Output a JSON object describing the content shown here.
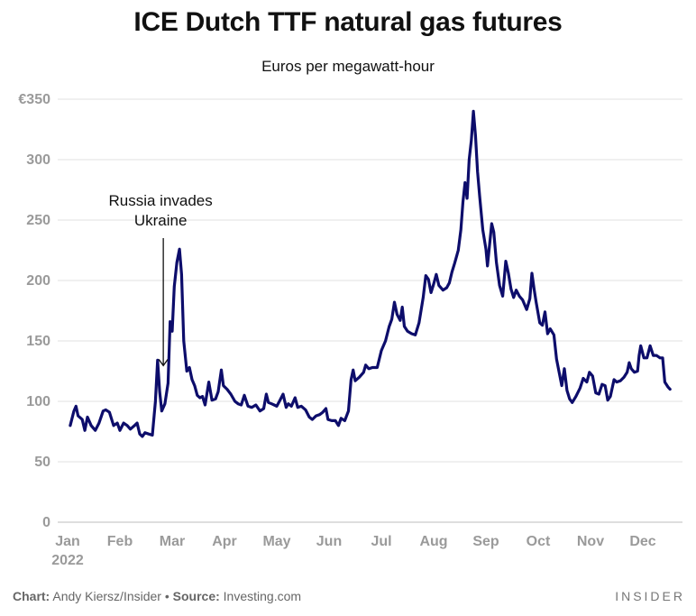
{
  "chart_data": {
    "type": "line",
    "title": "ICE Dutch TTF natural gas futures",
    "subtitle": "Euros per megawatt-hour",
    "xlabel": "",
    "ylabel": "",
    "ylim": [
      0,
      350
    ],
    "y_ticks": [
      {
        "value": 0,
        "label": "0"
      },
      {
        "value": 50,
        "label": "50"
      },
      {
        "value": 100,
        "label": "100"
      },
      {
        "value": 150,
        "label": "150"
      },
      {
        "value": 200,
        "label": "200"
      },
      {
        "value": 250,
        "label": "250"
      },
      {
        "value": 300,
        "label": "300"
      },
      {
        "value": 350,
        "label": "€350"
      }
    ],
    "x_ticks": [
      {
        "month": 1,
        "label": "Jan",
        "sublabel": "2022"
      },
      {
        "month": 2,
        "label": "Feb"
      },
      {
        "month": 3,
        "label": "Mar"
      },
      {
        "month": 4,
        "label": "Apr"
      },
      {
        "month": 5,
        "label": "May"
      },
      {
        "month": 6,
        "label": "Jun"
      },
      {
        "month": 7,
        "label": "Jul"
      },
      {
        "month": 8,
        "label": "Aug"
      },
      {
        "month": 9,
        "label": "Sep"
      },
      {
        "month": 10,
        "label": "Oct"
      },
      {
        "month": 11,
        "label": "Nov"
      },
      {
        "month": 12,
        "label": "Dec"
      }
    ],
    "grid": true,
    "line_color": "#0d0d6b",
    "annotation": {
      "lines": [
        "Russia invades",
        "Ukraine"
      ],
      "x": 2.83,
      "y": 140
    },
    "series": [
      {
        "values": [
          [
            1.05,
            80
          ],
          [
            1.12,
            92
          ],
          [
            1.16,
            96
          ],
          [
            1.2,
            88
          ],
          [
            1.28,
            85
          ],
          [
            1.33,
            76
          ],
          [
            1.38,
            87
          ],
          [
            1.45,
            80
          ],
          [
            1.53,
            76
          ],
          [
            1.6,
            82
          ],
          [
            1.68,
            92
          ],
          [
            1.73,
            93
          ],
          [
            1.8,
            91
          ],
          [
            1.88,
            80
          ],
          [
            1.95,
            82
          ],
          [
            2.0,
            76
          ],
          [
            2.07,
            82
          ],
          [
            2.14,
            80
          ],
          [
            2.2,
            77
          ],
          [
            2.28,
            80
          ],
          [
            2.33,
            82
          ],
          [
            2.38,
            73
          ],
          [
            2.43,
            71
          ],
          [
            2.48,
            74
          ],
          [
            2.55,
            73
          ],
          [
            2.62,
            72
          ],
          [
            2.68,
            100
          ],
          [
            2.72,
            134
          ],
          [
            2.76,
            108
          ],
          [
            2.8,
            92
          ],
          [
            2.86,
            98
          ],
          [
            2.92,
            115
          ],
          [
            2.96,
            166
          ],
          [
            3.0,
            158
          ],
          [
            3.04,
            195
          ],
          [
            3.09,
            215
          ],
          [
            3.14,
            226
          ],
          [
            3.18,
            205
          ],
          [
            3.22,
            150
          ],
          [
            3.28,
            125
          ],
          [
            3.33,
            128
          ],
          [
            3.38,
            118
          ],
          [
            3.43,
            113
          ],
          [
            3.48,
            105
          ],
          [
            3.53,
            103
          ],
          [
            3.58,
            104
          ],
          [
            3.63,
            97
          ],
          [
            3.7,
            116
          ],
          [
            3.76,
            101
          ],
          [
            3.83,
            102
          ],
          [
            3.88,
            108
          ],
          [
            3.94,
            126
          ],
          [
            3.98,
            113
          ],
          [
            4.05,
            110
          ],
          [
            4.12,
            106
          ],
          [
            4.2,
            100
          ],
          [
            4.26,
            98
          ],
          [
            4.32,
            97
          ],
          [
            4.38,
            105
          ],
          [
            4.45,
            96
          ],
          [
            4.52,
            95
          ],
          [
            4.6,
            97
          ],
          [
            4.68,
            92
          ],
          [
            4.75,
            94
          ],
          [
            4.8,
            106
          ],
          [
            4.84,
            99
          ],
          [
            4.9,
            98
          ],
          [
            4.95,
            97
          ],
          [
            5.0,
            96
          ],
          [
            5.05,
            100
          ],
          [
            5.12,
            106
          ],
          [
            5.18,
            95
          ],
          [
            5.22,
            98
          ],
          [
            5.28,
            96
          ],
          [
            5.35,
            103
          ],
          [
            5.4,
            95
          ],
          [
            5.47,
            96
          ],
          [
            5.55,
            93
          ],
          [
            5.62,
            87
          ],
          [
            5.68,
            85
          ],
          [
            5.75,
            88
          ],
          [
            5.82,
            89
          ],
          [
            5.88,
            91
          ],
          [
            5.94,
            94
          ],
          [
            5.98,
            85
          ],
          [
            6.05,
            84
          ],
          [
            6.12,
            84
          ],
          [
            6.18,
            80
          ],
          [
            6.23,
            86
          ],
          [
            6.3,
            84
          ],
          [
            6.37,
            92
          ],
          [
            6.42,
            118
          ],
          [
            6.46,
            126
          ],
          [
            6.5,
            117
          ],
          [
            6.58,
            120
          ],
          [
            6.66,
            124
          ],
          [
            6.7,
            130
          ],
          [
            6.76,
            127
          ],
          [
            6.83,
            128
          ],
          [
            6.92,
            128
          ],
          [
            7.0,
            142
          ],
          [
            7.08,
            150
          ],
          [
            7.15,
            162
          ],
          [
            7.2,
            168
          ],
          [
            7.25,
            182
          ],
          [
            7.3,
            172
          ],
          [
            7.36,
            167
          ],
          [
            7.4,
            178
          ],
          [
            7.44,
            162
          ],
          [
            7.5,
            158
          ],
          [
            7.58,
            156
          ],
          [
            7.65,
            155
          ],
          [
            7.72,
            165
          ],
          [
            7.8,
            186
          ],
          [
            7.85,
            204
          ],
          [
            7.9,
            201
          ],
          [
            7.95,
            190
          ],
          [
            8.0,
            197
          ],
          [
            8.05,
            205
          ],
          [
            8.1,
            196
          ],
          [
            8.18,
            192
          ],
          [
            8.25,
            194
          ],
          [
            8.3,
            198
          ],
          [
            8.35,
            207
          ],
          [
            8.4,
            214
          ],
          [
            8.47,
            225
          ],
          [
            8.52,
            242
          ],
          [
            8.56,
            265
          ],
          [
            8.6,
            281
          ],
          [
            8.64,
            268
          ],
          [
            8.68,
            300
          ],
          [
            8.72,
            316
          ],
          [
            8.76,
            340
          ],
          [
            8.8,
            320
          ],
          [
            8.84,
            290
          ],
          [
            8.88,
            270
          ],
          [
            8.94,
            242
          ],
          [
            9.0,
            226
          ],
          [
            9.03,
            212
          ],
          [
            9.07,
            230
          ],
          [
            9.11,
            247
          ],
          [
            9.15,
            240
          ],
          [
            9.2,
            215
          ],
          [
            9.26,
            196
          ],
          [
            9.32,
            187
          ],
          [
            9.38,
            216
          ],
          [
            9.43,
            206
          ],
          [
            9.48,
            193
          ],
          [
            9.53,
            186
          ],
          [
            9.58,
            192
          ],
          [
            9.64,
            187
          ],
          [
            9.7,
            184
          ],
          [
            9.78,
            176
          ],
          [
            9.84,
            185
          ],
          [
            9.88,
            206
          ],
          [
            9.92,
            193
          ],
          [
            9.96,
            182
          ],
          [
            10.03,
            165
          ],
          [
            10.08,
            163
          ],
          [
            10.13,
            174
          ],
          [
            10.18,
            156
          ],
          [
            10.23,
            160
          ],
          [
            10.3,
            155
          ],
          [
            10.35,
            135
          ],
          [
            10.4,
            124
          ],
          [
            10.45,
            113
          ],
          [
            10.5,
            127
          ],
          [
            10.55,
            109
          ],
          [
            10.6,
            102
          ],
          [
            10.65,
            99
          ],
          [
            10.72,
            104
          ],
          [
            10.8,
            111
          ],
          [
            10.86,
            119
          ],
          [
            10.93,
            116
          ],
          [
            10.98,
            124
          ],
          [
            11.04,
            121
          ],
          [
            11.1,
            107
          ],
          [
            11.16,
            106
          ],
          [
            11.22,
            114
          ],
          [
            11.28,
            113
          ],
          [
            11.33,
            101
          ],
          [
            11.38,
            104
          ],
          [
            11.45,
            118
          ],
          [
            11.5,
            116
          ],
          [
            11.57,
            117
          ],
          [
            11.64,
            120
          ],
          [
            11.7,
            124
          ],
          [
            11.74,
            132
          ],
          [
            11.78,
            127
          ],
          [
            11.84,
            124
          ],
          [
            11.9,
            125
          ],
          [
            11.93,
            138
          ],
          [
            11.96,
            146
          ],
          [
            12.02,
            136
          ],
          [
            12.08,
            136
          ],
          [
            12.14,
            146
          ],
          [
            12.2,
            138
          ],
          [
            12.26,
            138
          ],
          [
            12.33,
            136
          ],
          [
            12.38,
            136
          ],
          [
            12.42,
            116
          ],
          [
            12.48,
            112
          ],
          [
            12.52,
            110
          ]
        ]
      }
    ]
  },
  "footer": {
    "chart_label": "Chart:",
    "chart_author": " Andy Kiersz/Insider ",
    "separator": "•",
    "source_label": " Source:",
    "source_value": " Investing.com"
  },
  "brand": "INSIDER"
}
